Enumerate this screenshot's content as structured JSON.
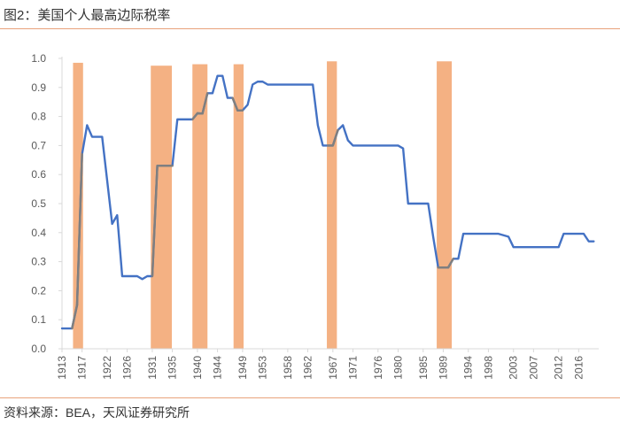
{
  "header": {
    "title": "图2：美国个人最高边际税率"
  },
  "footer": {
    "source": "资料来源：BEA，天风证券研究所"
  },
  "colors": {
    "line": "#4472c4",
    "shade": "#f4b183",
    "overlap": "#7f7f7f",
    "axis": "#d9d9d9",
    "text": "#595959",
    "rule": "#e8a27b"
  },
  "chart_data": {
    "type": "line",
    "title": "",
    "xlabel": "",
    "ylabel": "",
    "ylim": [
      0,
      1.0
    ],
    "xlim": [
      1913,
      2020
    ],
    "yticks": [
      "0.0",
      "0.1",
      "0.2",
      "0.3",
      "0.4",
      "0.5",
      "0.6",
      "0.7",
      "0.8",
      "0.9",
      "1.0"
    ],
    "xticks": [
      "1913",
      "1917",
      "1922",
      "1926",
      "1931",
      "1935",
      "1940",
      "1944",
      "1949",
      "1953",
      "1958",
      "1962",
      "1967",
      "1971",
      "1976",
      "1980",
      "1985",
      "1989",
      "1994",
      "1998",
      "2003",
      "2007",
      "2012",
      "2016"
    ],
    "shaded_periods": [
      {
        "start": 1915.2,
        "end": 1917.2,
        "height": 0.985
      },
      {
        "start": 1930.7,
        "end": 1934.9,
        "height": 0.975
      },
      {
        "start": 1939.0,
        "end": 1942.0,
        "height": 0.98
      },
      {
        "start": 1947.2,
        "end": 1949.2,
        "height": 0.98
      },
      {
        "start": 1965.8,
        "end": 1967.8,
        "height": 0.99
      },
      {
        "start": 1987.7,
        "end": 1990.7,
        "height": 0.99
      }
    ],
    "series": [
      {
        "name": "",
        "x": [
          1913,
          1914,
          1915,
          1916,
          1917,
          1918,
          1919,
          1920,
          1921,
          1922,
          1923,
          1924,
          1925,
          1926,
          1927,
          1928,
          1929,
          1930,
          1931,
          1932,
          1933,
          1934,
          1935,
          1936,
          1937,
          1938,
          1939,
          1940,
          1941,
          1942,
          1943,
          1944,
          1945,
          1946,
          1947,
          1948,
          1949,
          1950,
          1951,
          1952,
          1953,
          1954,
          1955,
          1956,
          1957,
          1958,
          1959,
          1960,
          1961,
          1962,
          1963,
          1964,
          1965,
          1966,
          1967,
          1968,
          1969,
          1970,
          1971,
          1972,
          1973,
          1974,
          1975,
          1976,
          1977,
          1978,
          1979,
          1980,
          1981,
          1982,
          1983,
          1984,
          1985,
          1986,
          1987,
          1988,
          1989,
          1990,
          1991,
          1992,
          1993,
          1994,
          1995,
          1996,
          1997,
          1998,
          1999,
          2000,
          2001,
          2002,
          2003,
          2004,
          2005,
          2006,
          2007,
          2008,
          2009,
          2010,
          2011,
          2012,
          2013,
          2014,
          2015,
          2016,
          2017,
          2018,
          2019
        ],
        "values": [
          0.07,
          0.07,
          0.07,
          0.15,
          0.67,
          0.77,
          0.73,
          0.73,
          0.73,
          0.58,
          0.43,
          0.46,
          0.25,
          0.25,
          0.25,
          0.25,
          0.24,
          0.25,
          0.25,
          0.63,
          0.63,
          0.63,
          0.63,
          0.79,
          0.79,
          0.79,
          0.79,
          0.811,
          0.81,
          0.88,
          0.88,
          0.94,
          0.94,
          0.864,
          0.864,
          0.821,
          0.821,
          0.84,
          0.91,
          0.92,
          0.92,
          0.91,
          0.91,
          0.91,
          0.91,
          0.91,
          0.91,
          0.91,
          0.91,
          0.91,
          0.91,
          0.77,
          0.7,
          0.7,
          0.7,
          0.753,
          0.77,
          0.718,
          0.7,
          0.7,
          0.7,
          0.7,
          0.7,
          0.7,
          0.7,
          0.7,
          0.7,
          0.7,
          0.69,
          0.5,
          0.5,
          0.5,
          0.5,
          0.5,
          0.385,
          0.28,
          0.28,
          0.28,
          0.31,
          0.31,
          0.396,
          0.396,
          0.396,
          0.396,
          0.396,
          0.396,
          0.396,
          0.396,
          0.391,
          0.386,
          0.35,
          0.35,
          0.35,
          0.35,
          0.35,
          0.35,
          0.35,
          0.35,
          0.35,
          0.35,
          0.396,
          0.396,
          0.396,
          0.396,
          0.396,
          0.37,
          0.37
        ]
      }
    ]
  }
}
